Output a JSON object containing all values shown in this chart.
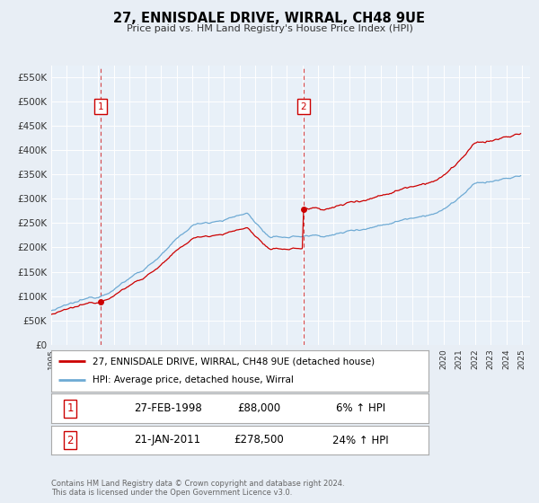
{
  "title": "27, ENNISDALE DRIVE, WIRRAL, CH48 9UE",
  "subtitle": "Price paid vs. HM Land Registry's House Price Index (HPI)",
  "ylim": [
    0,
    575000
  ],
  "yticks": [
    0,
    50000,
    100000,
    150000,
    200000,
    250000,
    300000,
    350000,
    400000,
    450000,
    500000,
    550000
  ],
  "ytick_labels": [
    "£0",
    "£50K",
    "£100K",
    "£150K",
    "£200K",
    "£250K",
    "£300K",
    "£350K",
    "£400K",
    "£450K",
    "£500K",
    "£550K"
  ],
  "sale1_date": 1998.15,
  "sale1_price": 88000,
  "sale2_date": 2011.07,
  "sale2_price": 278500,
  "legend_line1": "27, ENNISDALE DRIVE, WIRRAL, CH48 9UE (detached house)",
  "legend_line2": "HPI: Average price, detached house, Wirral",
  "table_row1_num": "1",
  "table_row1_date": "27-FEB-1998",
  "table_row1_price": "£88,000",
  "table_row1_hpi": "6% ↑ HPI",
  "table_row2_num": "2",
  "table_row2_date": "21-JAN-2011",
  "table_row2_price": "£278,500",
  "table_row2_hpi": "24% ↑ HPI",
  "footnote": "Contains HM Land Registry data © Crown copyright and database right 2024.\nThis data is licensed under the Open Government Licence v3.0.",
  "hpi_color": "#6eaad4",
  "sale_color": "#cc0000",
  "background_color": "#e8eef5",
  "plot_bg": "#e8f0f8",
  "grid_color": "#ffffff",
  "label_color": "#333333"
}
